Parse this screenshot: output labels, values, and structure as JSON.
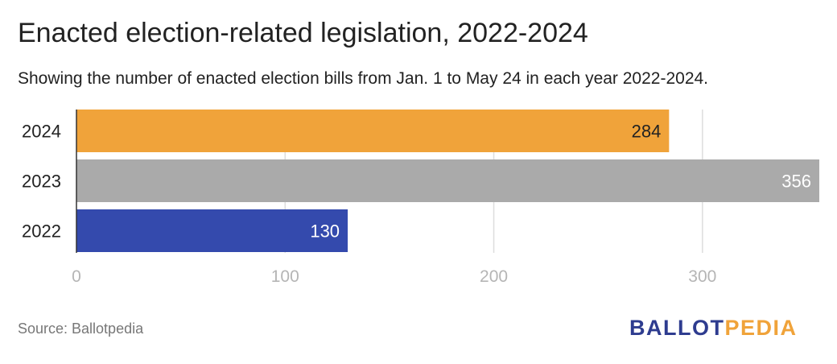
{
  "title": "Enacted election-related legislation, 2022-2024",
  "subtitle": "Showing the number of enacted election bills from Jan. 1 to May 24 in each year 2022-2024.",
  "source": "Source: Ballotpedia",
  "logo": {
    "part1": "BALLOT",
    "part2": "PEDIA"
  },
  "chart_data": {
    "type": "bar",
    "orientation": "horizontal",
    "categories": [
      "2024",
      "2023",
      "2022"
    ],
    "values": [
      284,
      356,
      130
    ],
    "colors": [
      "#f0a33a",
      "#aaaaaa",
      "#344aad"
    ],
    "xlim": [
      0,
      356
    ],
    "x_ticks": [
      0,
      100,
      200,
      300
    ],
    "grid": true,
    "data_labels": true
  }
}
